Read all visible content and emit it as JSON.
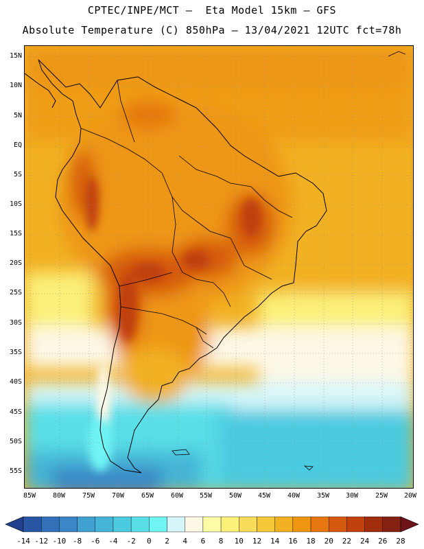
{
  "header": {
    "title_line1": "CPTEC/INPE/MCT –  Eta Model 15km – GFS",
    "title_line2": "Absolute Temperature (C) 850hPa – 13/04/2021 12UTC fct=78h"
  },
  "map": {
    "region": "South America",
    "lat_labels": [
      "15N",
      "10N",
      "5N",
      "EQ",
      "5S",
      "10S",
      "15S",
      "20S",
      "25S",
      "30S",
      "35S",
      "40S",
      "45S",
      "50S",
      "55S"
    ],
    "lon_labels": [
      "85W",
      "80W",
      "75W",
      "70W",
      "65W",
      "60W",
      "55W",
      "50W",
      "45W",
      "40W",
      "35W",
      "30W",
      "25W",
      "20W"
    ],
    "grid": "dotted",
    "variable": "Absolute Temperature (C) 850hPa"
  },
  "colorbar": {
    "labels": [
      "-14",
      "-12",
      "-10",
      "-8",
      "-6",
      "-4",
      "-2",
      "0",
      "2",
      "4",
      "6",
      "8",
      "10",
      "12",
      "14",
      "16",
      "18",
      "20",
      "22",
      "24",
      "26",
      "28"
    ],
    "colors": [
      "#23408f",
      "#2a57a3",
      "#3270b7",
      "#3a86c6",
      "#40a0d0",
      "#44b5d6",
      "#4ccbe0",
      "#58dfe8",
      "#6ff3f3",
      "#d6f6f9",
      "#fdf8e6",
      "#fdfca6",
      "#fbf07a",
      "#f7dd5b",
      "#f5c83a",
      "#f2b123",
      "#ee9612",
      "#e57610",
      "#d65a0e",
      "#c0410c",
      "#a12e0d",
      "#862212",
      "#6e1419"
    ]
  }
}
